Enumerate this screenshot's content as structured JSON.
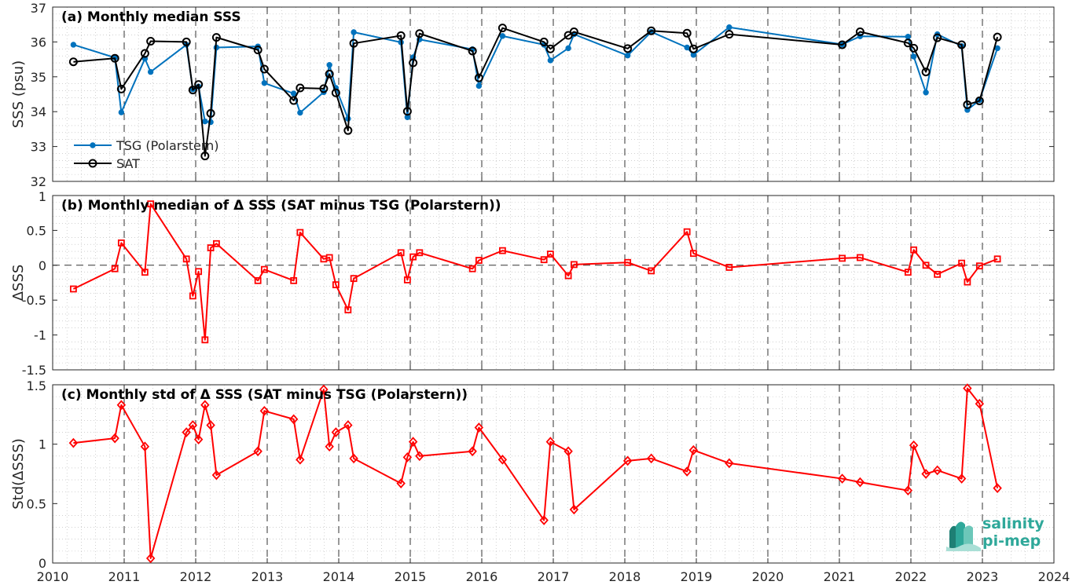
{
  "colors": {
    "tsg": "#0072BD",
    "sat": "#000000",
    "delta": "#FF0000",
    "axis": "#262626",
    "grid": "#b5b5b5",
    "logo": "#2fa89a"
  },
  "x_ticks": [
    "2010",
    "2011",
    "2012",
    "2013",
    "2014",
    "2015",
    "2016",
    "2017",
    "2018",
    "2019",
    "2020",
    "2021",
    "2022",
    "2023",
    "2024"
  ],
  "logo": {
    "line1": "salinity",
    "line2": "pi-mep"
  },
  "panels": [
    {
      "title": "(a) Monthly median SSS",
      "ylabel": "SSS (psu)",
      "ylim": [
        32,
        37
      ],
      "yticks": [
        "32",
        "33",
        "34",
        "35",
        "36",
        "37"
      ],
      "legend": [
        "TSG (Polarstern)",
        "SAT"
      ]
    },
    {
      "title": "(b) Monthly median of Δ SSS (SAT minus TSG (Polarstern))",
      "ylabel": "ΔSSS",
      "ylim": [
        -1.5,
        1
      ],
      "yticks": [
        "-1.5",
        "-1",
        "-0.5",
        "0",
        "0.5",
        "1"
      ]
    },
    {
      "title": "(c) Monthly std of Δ SSS (SAT minus TSG (Polarstern))",
      "ylabel": "Std(ΔSSS)",
      "ylim": [
        0,
        1.5
      ],
      "yticks": [
        "0",
        "0.5",
        "1",
        "1.5"
      ]
    }
  ],
  "chart_data": [
    {
      "type": "line",
      "title": "(a) Monthly median SSS",
      "xlabel": "",
      "ylabel": "SSS (psu)",
      "xlim": [
        2010,
        2024
      ],
      "ylim": [
        32,
        37
      ],
      "grid": true,
      "legend_placement": "bottom-left",
      "series": [
        {
          "name": "TSG (Polarstern)",
          "marker": "dot",
          "x": [
            2010.29,
            2010.87,
            2010.96,
            2011.29,
            2011.37,
            2011.87,
            2011.96,
            2012.04,
            2012.13,
            2012.21,
            2012.29,
            2012.87,
            2012.96,
            2013.37,
            2013.46,
            2013.79,
            2013.87,
            2013.96,
            2014.13,
            2014.21,
            2014.87,
            2014.96,
            2015.04,
            2015.13,
            2015.87,
            2015.96,
            2016.29,
            2016.87,
            2016.96,
            2017.21,
            2017.29,
            2018.04,
            2018.37,
            2018.87,
            2018.96,
            2019.46,
            2021.04,
            2021.29,
            2021.96,
            2022.04,
            2022.21,
            2022.37,
            2022.71,
            2022.79,
            2022.96,
            2023.21
          ],
          "y": [
            35.92,
            35.55,
            33.98,
            35.52,
            35.14,
            35.92,
            34.64,
            34.72,
            33.72,
            33.7,
            35.84,
            35.87,
            34.82,
            34.52,
            33.97,
            34.56,
            35.34,
            34.68,
            33.8,
            36.28,
            35.99,
            33.84,
            35.56,
            36.07,
            35.79,
            34.74,
            36.17,
            35.92,
            35.47,
            35.82,
            36.22,
            35.61,
            36.29,
            35.84,
            35.63,
            36.42,
            35.93,
            36.16,
            36.15,
            35.58,
            34.55,
            36.22,
            35.88,
            34.05,
            34.33,
            35.82
          ]
        },
        {
          "name": "SAT",
          "marker": "circle",
          "x": [
            2010.29,
            2010.87,
            2010.96,
            2011.29,
            2011.37,
            2011.87,
            2011.96,
            2012.04,
            2012.13,
            2012.21,
            2012.29,
            2012.87,
            2012.96,
            2013.37,
            2013.46,
            2013.79,
            2013.87,
            2013.96,
            2014.13,
            2014.21,
            2014.87,
            2014.96,
            2015.04,
            2015.13,
            2015.87,
            2015.96,
            2016.29,
            2016.87,
            2016.96,
            2017.21,
            2017.29,
            2018.04,
            2018.37,
            2018.87,
            2018.96,
            2019.46,
            2021.04,
            2021.29,
            2021.96,
            2022.04,
            2022.21,
            2022.37,
            2022.71,
            2022.79,
            2022.96,
            2023.21
          ],
          "y": [
            35.43,
            35.53,
            34.65,
            35.67,
            36.02,
            36.0,
            34.62,
            34.78,
            32.73,
            33.95,
            36.13,
            35.77,
            35.22,
            34.32,
            34.68,
            34.66,
            35.08,
            34.54,
            33.46,
            35.96,
            36.18,
            34.01,
            35.4,
            36.24,
            35.74,
            34.97,
            36.4,
            36.0,
            35.8,
            36.19,
            36.29,
            35.81,
            36.32,
            36.25,
            35.8,
            36.22,
            35.92,
            36.29,
            35.97,
            35.82,
            35.14,
            36.12,
            35.92,
            34.2,
            34.31,
            36.14
          ]
        }
      ]
    },
    {
      "type": "line",
      "title": "(b) Monthly median of Δ SSS (SAT minus TSG (Polarstern))",
      "xlabel": "",
      "ylabel": "ΔSSS",
      "xlim": [
        2010,
        2024
      ],
      "ylim": [
        -1.5,
        1
      ],
      "grid": true,
      "zero_line": "dashed",
      "series": [
        {
          "marker": "square",
          "x": [
            2010.29,
            2010.87,
            2010.96,
            2011.29,
            2011.37,
            2011.87,
            2011.96,
            2012.04,
            2012.13,
            2012.21,
            2012.29,
            2012.87,
            2012.96,
            2013.37,
            2013.46,
            2013.79,
            2013.87,
            2013.96,
            2014.13,
            2014.21,
            2014.87,
            2014.96,
            2015.04,
            2015.13,
            2015.87,
            2015.96,
            2016.29,
            2016.87,
            2016.96,
            2017.21,
            2017.29,
            2018.04,
            2018.37,
            2018.87,
            2018.96,
            2019.46,
            2021.04,
            2021.29,
            2021.96,
            2022.04,
            2022.21,
            2022.37,
            2022.71,
            2022.79,
            2022.96,
            2023.21
          ],
          "y": [
            -0.34,
            -0.05,
            0.32,
            -0.1,
            0.88,
            0.09,
            -0.44,
            -0.09,
            -1.07,
            0.25,
            0.31,
            -0.22,
            -0.06,
            -0.22,
            0.47,
            0.09,
            0.11,
            -0.28,
            -0.64,
            -0.19,
            0.18,
            -0.21,
            0.12,
            0.18,
            -0.05,
            0.07,
            0.21,
            0.08,
            0.16,
            -0.15,
            0.01,
            0.04,
            -0.08,
            0.48,
            0.17,
            -0.03,
            0.1,
            0.11,
            -0.1,
            0.22,
            0.0,
            -0.13,
            0.03,
            -0.24,
            -0.01,
            0.09
          ]
        }
      ]
    },
    {
      "type": "line",
      "title": "(c) Monthly std of Δ SSS (SAT minus TSG (Polarstern))",
      "xlabel": "",
      "ylabel": "Std(ΔSSS)",
      "xlim": [
        2010,
        2024
      ],
      "ylim": [
        0,
        1.5
      ],
      "grid": true,
      "series": [
        {
          "marker": "diamond",
          "x": [
            2010.29,
            2010.87,
            2010.96,
            2011.29,
            2011.37,
            2011.87,
            2011.96,
            2012.04,
            2012.13,
            2012.21,
            2012.29,
            2012.87,
            2012.96,
            2013.37,
            2013.46,
            2013.79,
            2013.87,
            2013.96,
            2014.13,
            2014.21,
            2014.87,
            2014.96,
            2015.04,
            2015.13,
            2015.87,
            2015.96,
            2016.29,
            2016.87,
            2016.96,
            2017.21,
            2017.29,
            2018.04,
            2018.37,
            2018.87,
            2018.96,
            2019.46,
            2021.04,
            2021.29,
            2021.96,
            2022.04,
            2022.21,
            2022.37,
            2022.71,
            2022.79,
            2022.96,
            2023.21
          ],
          "y": [
            1.01,
            1.05,
            1.33,
            0.98,
            0.04,
            1.1,
            1.16,
            1.04,
            1.33,
            1.16,
            0.74,
            0.94,
            1.28,
            1.21,
            0.87,
            1.46,
            0.98,
            1.1,
            1.16,
            0.88,
            0.67,
            0.89,
            1.02,
            0.9,
            0.94,
            1.14,
            0.87,
            0.36,
            1.02,
            0.94,
            0.45,
            0.86,
            0.88,
            0.77,
            0.95,
            0.84,
            0.71,
            0.68,
            0.61,
            0.99,
            0.75,
            0.78,
            0.71,
            1.47,
            1.34,
            0.63
          ]
        }
      ]
    }
  ]
}
